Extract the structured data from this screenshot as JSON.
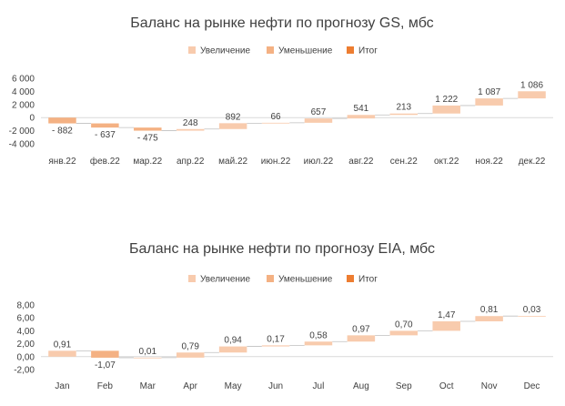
{
  "legend": {
    "increase": "Увеличение",
    "decrease": "Уменьшение",
    "total": "Итог"
  },
  "colors": {
    "increase": "#f8cbad",
    "decrease": "#f4b183",
    "total": "#ed7d31",
    "axis": "#d9d9d9",
    "text": "#404040"
  },
  "chart_data": [
    {
      "type": "bar",
      "subtype": "waterfall",
      "title": "Баланс на рынке нефти по прогнозу GS, мбс",
      "categories": [
        "янв.22",
        "фев.22",
        "мар.22",
        "апр.22",
        "май.22",
        "июн.22",
        "июл.22",
        "авг.22",
        "сен.22",
        "окт.22",
        "ноя.22",
        "дек.22"
      ],
      "values": [
        -882,
        -637,
        -475,
        248,
        892,
        66,
        657,
        541,
        213,
        1222,
        1087,
        1086
      ],
      "value_labels": [
        "- 882",
        "- 637",
        "- 475",
        "248",
        "892",
        "66",
        "657",
        "541",
        "213",
        "1 222",
        "1 087",
        "1 086"
      ],
      "ylim": [
        -4000,
        6000
      ],
      "yticks": [
        -4000,
        -2000,
        0,
        2000,
        4000,
        6000
      ],
      "ytick_labels": [
        "-4 000",
        "-2 000",
        "0",
        "2 000",
        "4 000",
        "6 000"
      ],
      "legend_position": "top"
    },
    {
      "type": "bar",
      "subtype": "waterfall",
      "title": "Баланс на рынке нефти по прогнозу EIA, мбс",
      "categories": [
        "Jan",
        "Feb",
        "Mar",
        "Apr",
        "May",
        "Jun",
        "Jul",
        "Aug",
        "Sep",
        "Oct",
        "Nov",
        "Dec"
      ],
      "values": [
        0.91,
        -1.07,
        0.01,
        0.79,
        0.94,
        0.17,
        0.58,
        0.97,
        0.7,
        1.47,
        0.81,
        0.03
      ],
      "value_labels": [
        "0,91",
        "-1,07",
        "0,01",
        "0,79",
        "0,94",
        "0,17",
        "0,58",
        "0,97",
        "0,70",
        "1,47",
        "0,81",
        "0,03"
      ],
      "ylim": [
        -2,
        8
      ],
      "yticks": [
        -2,
        0,
        2,
        4,
        6,
        8
      ],
      "ytick_labels": [
        "-2,00",
        "0,00",
        "2,00",
        "4,00",
        "6,00",
        "8,00"
      ],
      "legend_position": "top"
    }
  ]
}
